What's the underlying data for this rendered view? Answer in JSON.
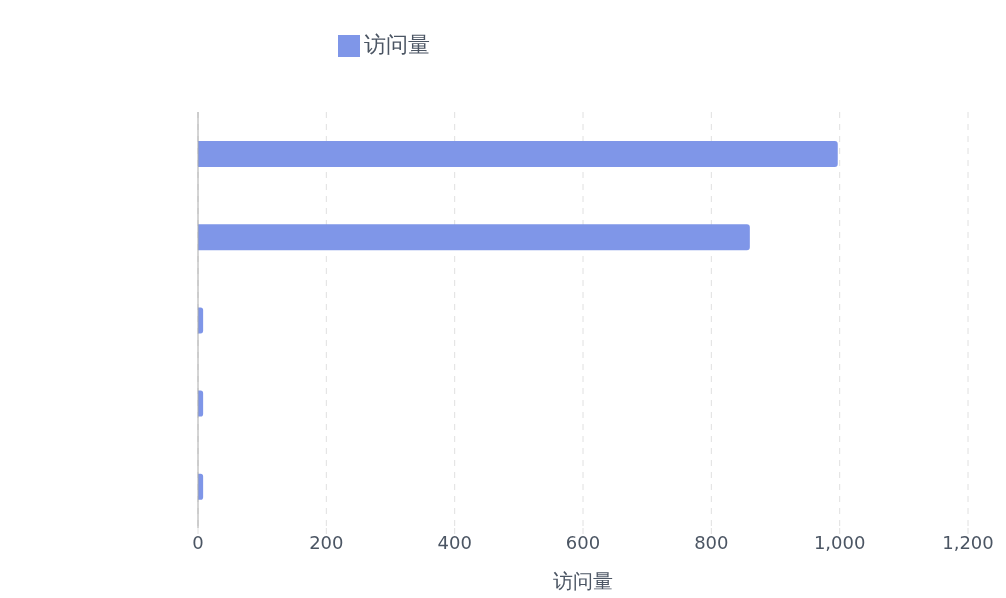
{
  "chart_data": {
    "type": "bar",
    "orientation": "horizontal",
    "categories": [
      null,
      null,
      null,
      null,
      null
    ],
    "series": [
      {
        "name": "访问量",
        "color": "#7f96e8",
        "values": [
          997,
          860,
          8,
          8,
          8
        ]
      }
    ],
    "xlabel": "访问量",
    "xlim": [
      0,
      1200
    ],
    "xticks": [
      0,
      200,
      400,
      600,
      800,
      {
        "value": 1000,
        "label": "1,000"
      },
      {
        "value": 1200,
        "label": "1,200"
      }
    ],
    "grid": "x",
    "legend": "top"
  }
}
